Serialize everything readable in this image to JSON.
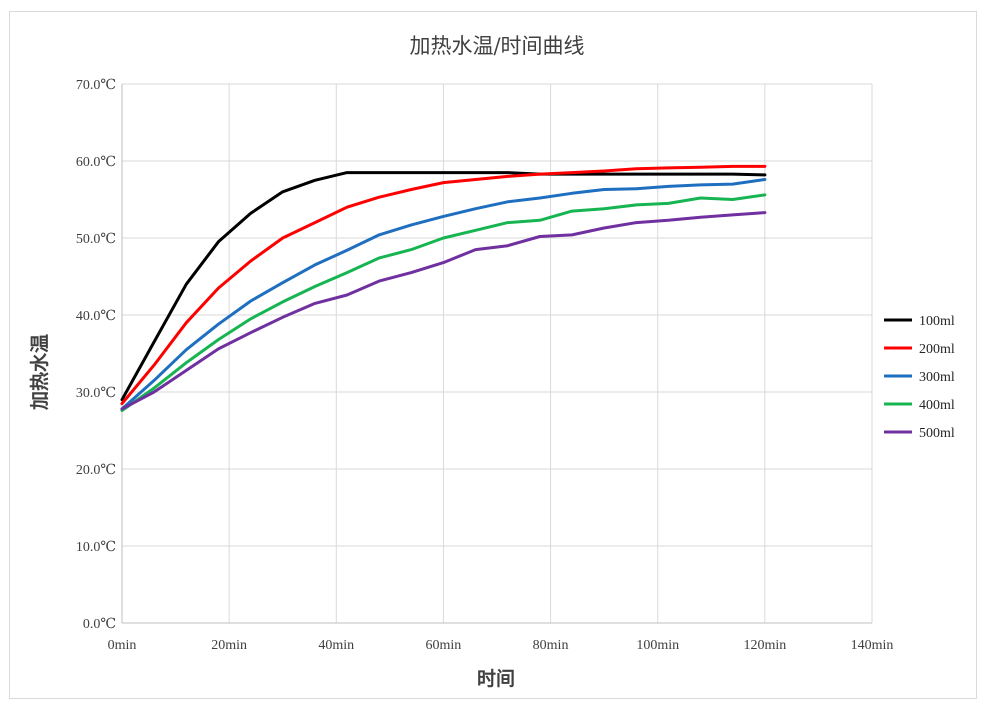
{
  "chart_data": {
    "type": "line",
    "title": "加热水温/时间曲线",
    "xlabel": "时间",
    "ylabel": "加热水温",
    "xlim": [
      0,
      140
    ],
    "ylim": [
      0,
      70
    ],
    "x_ticks": [
      0,
      20,
      40,
      60,
      80,
      100,
      120,
      140
    ],
    "x_tick_labels": [
      "0min",
      "20min",
      "40min",
      "60min",
      "80min",
      "100min",
      "120min",
      "140min"
    ],
    "y_ticks": [
      0,
      10,
      20,
      30,
      40,
      50,
      60,
      70
    ],
    "y_tick_labels": [
      "0.0℃",
      "10.0℃",
      "20.0℃",
      "30.0℃",
      "40.0℃",
      "50.0℃",
      "60.0℃",
      "70.0℃"
    ],
    "grid": true,
    "legend_position": "right",
    "series": [
      {
        "name": "100ml",
        "color": "#000000",
        "x": [
          0,
          6,
          12,
          18,
          24,
          30,
          36,
          42,
          48,
          54,
          60,
          66,
          72,
          78,
          84,
          90,
          96,
          102,
          108,
          114,
          120
        ],
        "y": [
          29.0,
          36.5,
          44.0,
          49.5,
          53.2,
          56.0,
          57.5,
          58.5,
          58.5,
          58.5,
          58.5,
          58.5,
          58.5,
          58.3,
          58.3,
          58.3,
          58.3,
          58.3,
          58.3,
          58.3,
          58.2
        ]
      },
      {
        "name": "200ml",
        "color": "#ff0000",
        "x": [
          0,
          6,
          12,
          18,
          24,
          30,
          36,
          42,
          48,
          54,
          60,
          66,
          72,
          78,
          84,
          90,
          96,
          102,
          108,
          114,
          120
        ],
        "y": [
          28.5,
          33.5,
          39.0,
          43.5,
          47.0,
          50.0,
          52.0,
          54.0,
          55.3,
          56.3,
          57.2,
          57.6,
          58.0,
          58.3,
          58.5,
          58.7,
          59.0,
          59.1,
          59.2,
          59.3,
          59.3
        ]
      },
      {
        "name": "300ml",
        "color": "#1f6fc0",
        "x": [
          0,
          6,
          12,
          18,
          24,
          30,
          36,
          42,
          48,
          54,
          60,
          66,
          72,
          78,
          84,
          90,
          96,
          102,
          108,
          114,
          120
        ],
        "y": [
          27.8,
          31.5,
          35.5,
          38.8,
          41.8,
          44.2,
          46.5,
          48.4,
          50.4,
          51.7,
          52.8,
          53.8,
          54.7,
          55.2,
          55.8,
          56.3,
          56.4,
          56.7,
          56.9,
          57.0,
          57.6
        ]
      },
      {
        "name": "400ml",
        "color": "#16b552",
        "x": [
          0,
          6,
          12,
          18,
          24,
          30,
          36,
          42,
          48,
          54,
          60,
          66,
          72,
          78,
          84,
          90,
          96,
          102,
          108,
          114,
          120
        ],
        "y": [
          27.6,
          30.5,
          33.8,
          36.8,
          39.5,
          41.7,
          43.7,
          45.5,
          47.4,
          48.5,
          50.0,
          51.0,
          52.0,
          52.3,
          53.5,
          53.8,
          54.3,
          54.5,
          55.2,
          55.0,
          55.6
        ]
      },
      {
        "name": "500ml",
        "color": "#7030a0",
        "x": [
          0,
          6,
          12,
          18,
          24,
          30,
          36,
          42,
          48,
          54,
          60,
          66,
          72,
          78,
          84,
          90,
          96,
          102,
          108,
          114,
          120
        ],
        "y": [
          27.8,
          30.0,
          32.8,
          35.6,
          37.7,
          39.7,
          41.5,
          42.6,
          44.4,
          45.5,
          46.8,
          48.5,
          49.0,
          50.2,
          50.4,
          51.3,
          52.0,
          52.3,
          52.7,
          53.0,
          53.3
        ]
      }
    ]
  }
}
